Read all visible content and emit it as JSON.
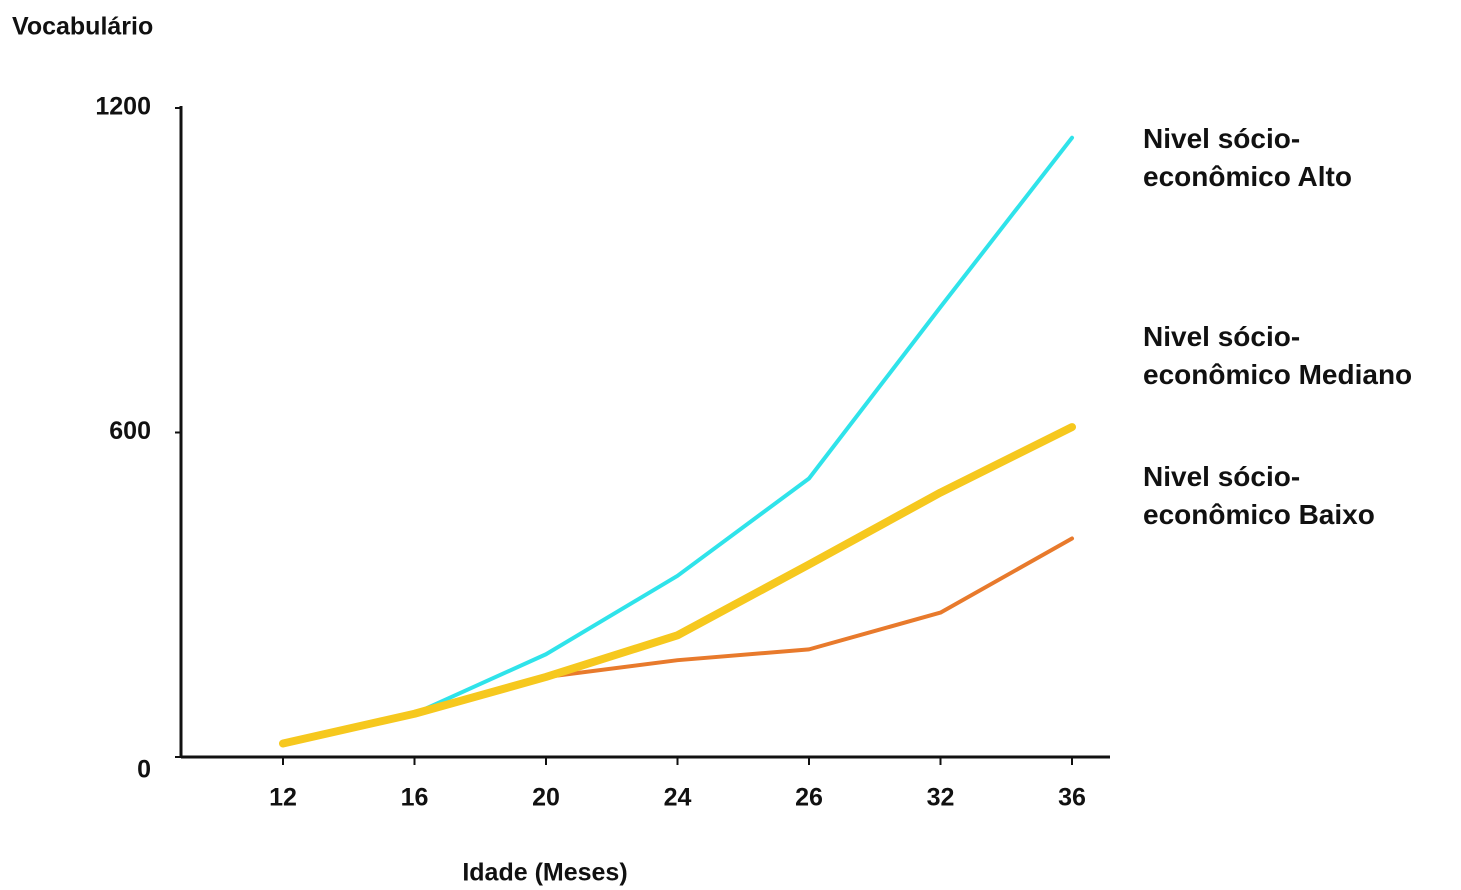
{
  "chart_data": {
    "type": "line",
    "title": "Vocabulário",
    "x_label": "Idade (Meses)",
    "categories": [
      "12",
      "16",
      "20",
      "24",
      "26",
      "32",
      "36"
    ],
    "series": [
      {
        "name": "Nivel sócio-\neconômico Alto",
        "color": "#2fe3ea",
        "values": [
          25,
          80,
          190,
          335,
          515,
          832,
          1145
        ]
      },
      {
        "name": "Nivel sócio-\neconômico Mediano",
        "color": "#f6c81e",
        "values": [
          25,
          80,
          148,
          225,
          356,
          489,
          610
        ]
      },
      {
        "name": "Nivel sócio-\neconômico Baixo",
        "color": "#e87a2c",
        "values": [
          25,
          80,
          148,
          179,
          199,
          267,
          404
        ]
      }
    ],
    "ylim": [
      0,
      1200
    ],
    "yticks": [
      0,
      600,
      1200
    ]
  }
}
